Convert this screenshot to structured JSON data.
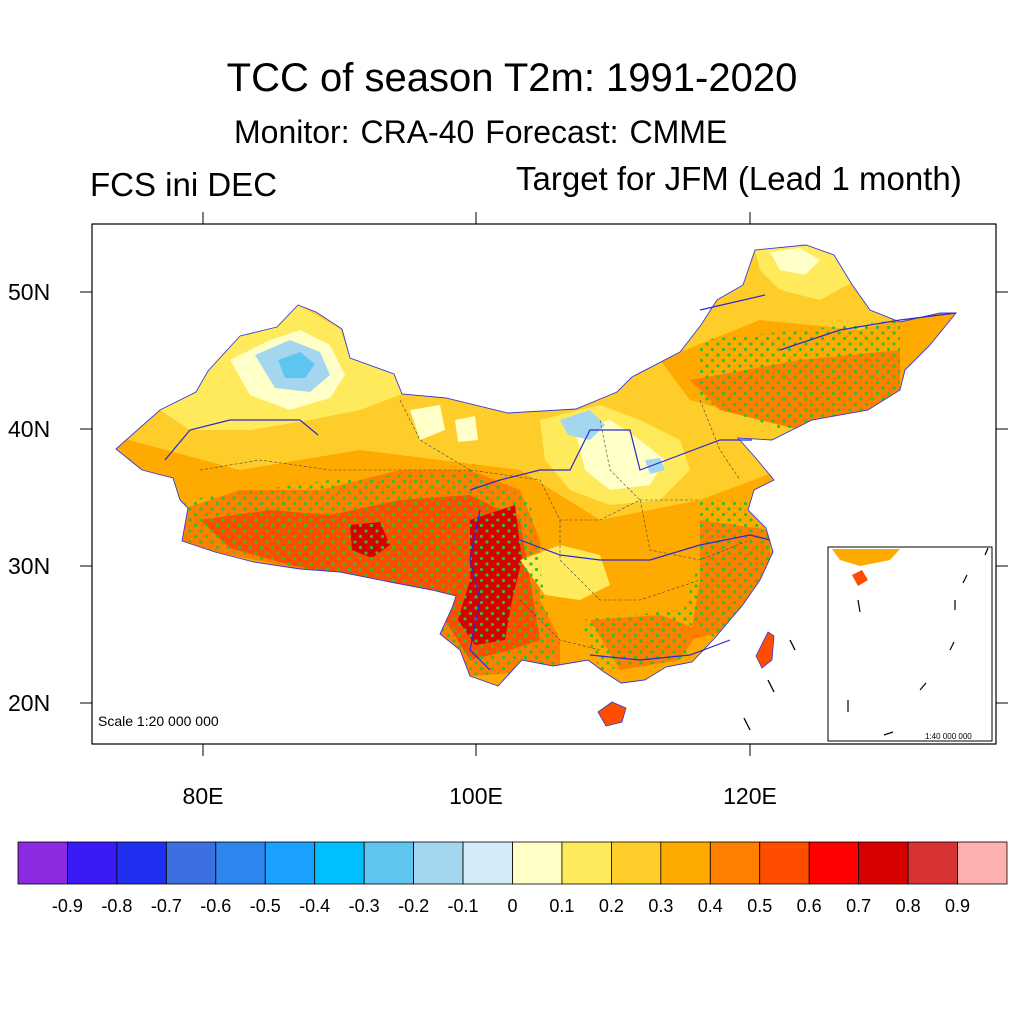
{
  "title": "TCC of season T2m: 1991-2020",
  "subtitle": "Monitor: CRA-40   Forecast: CMME",
  "left_label": "FCS ini DEC",
  "right_label": "Target for JFM (Lead 1 month)",
  "map": {
    "lat_labels": [
      "50N",
      "40N",
      "30N",
      "20N"
    ],
    "lon_labels": [
      "80E",
      "100E",
      "120E"
    ],
    "scale_label": "Scale 1:20 000 000",
    "inset_scale_label": "1:40 000 000",
    "land_outline_color": "#000000",
    "river_color": "#2a2ad0",
    "stipple_color": "#2fbf2f"
  },
  "colorbar": {
    "colors": [
      "#8a2be2",
      "#3a1af5",
      "#1e2ff0",
      "#3c6fe0",
      "#2e86f0",
      "#1aa0ff",
      "#00bfff",
      "#5ec5f0",
      "#a5d6f0",
      "#d2ebf7",
      "#ffffc8",
      "#ffea5c",
      "#ffcd2a",
      "#ffaa00",
      "#ff8000",
      "#ff4d00",
      "#ff0000",
      "#d80000",
      "#d83232",
      "#ffb0b0"
    ],
    "tick_labels": [
      "-0.9",
      "-0.8",
      "-0.7",
      "-0.6",
      "-0.5",
      "-0.4",
      "-0.3",
      "-0.2",
      "-0.1",
      "0",
      "0.1",
      "0.2",
      "0.3",
      "0.4",
      "0.5",
      "0.6",
      "0.7",
      "0.8",
      "0.9"
    ]
  }
}
